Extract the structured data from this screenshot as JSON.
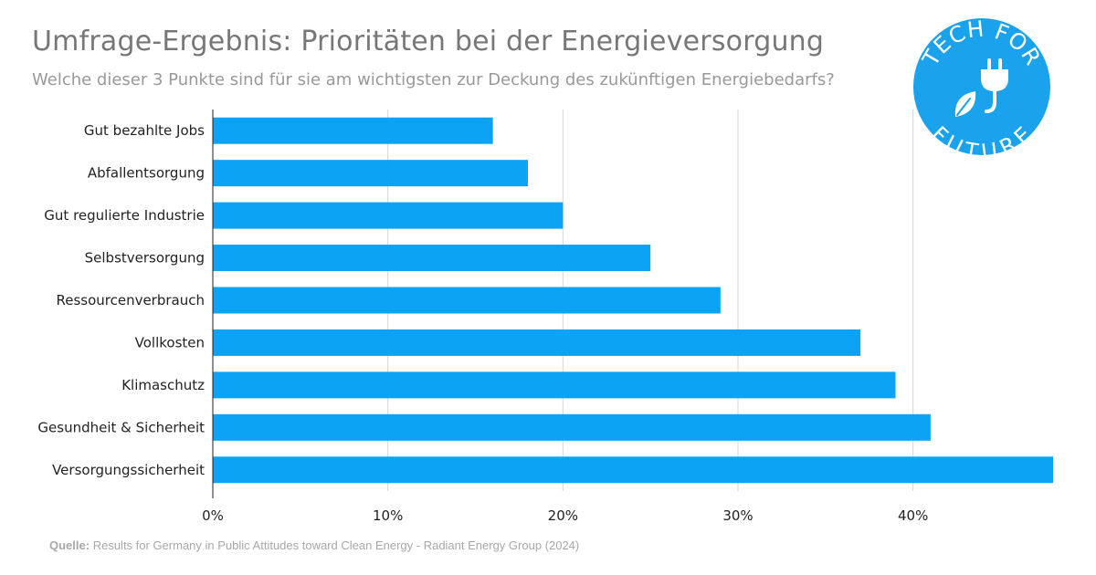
{
  "header": {
    "title": "Umfrage-Ergebnis: Prioritäten bei der Energieversorgung",
    "subtitle": "Welche dieser 3 Punkte sind für sie am wichtigsten zur Deckung des zukünftigen Energiebedarfs?"
  },
  "logo": {
    "text_top": "TECH FOR",
    "text_bottom": "FUTURE",
    "icon": "plug-leaf-icon",
    "color": "#1aa3ec"
  },
  "source": {
    "label": "Quelle:",
    "text": "Results for Germany in Public Attitudes toward Clean Energy - Radiant Energy Group (2024)"
  },
  "colors": {
    "bar": "#0da3f5",
    "grid": "#d6d6d6",
    "axis": "#222222"
  },
  "chart_data": {
    "type": "bar",
    "orientation": "horizontal",
    "title": "Umfrage-Ergebnis: Prioritäten bei der Energieversorgung",
    "subtitle": "Welche dieser 3 Punkte sind für sie am wichtigsten zur Deckung des zukünftigen Energiebedarfs?",
    "categories": [
      "Gut bezahlte Jobs",
      "Abfallentsorgung",
      "Gut regulierte Industrie",
      "Selbstversorgung",
      "Ressourcenverbrauch",
      "Vollkosten",
      "Klimaschutz",
      "Gesundheit & Sicherheit",
      "Versorgungssicherheit"
    ],
    "values": [
      16,
      18,
      20,
      25,
      29,
      37,
      39,
      41,
      48
    ],
    "x_ticks": [
      0,
      10,
      20,
      30,
      40
    ],
    "x_tick_labels": [
      "0%",
      "10%",
      "20%",
      "30%",
      "40%"
    ],
    "xlim": [
      0,
      48
    ],
    "grid": true,
    "legend": "none"
  }
}
